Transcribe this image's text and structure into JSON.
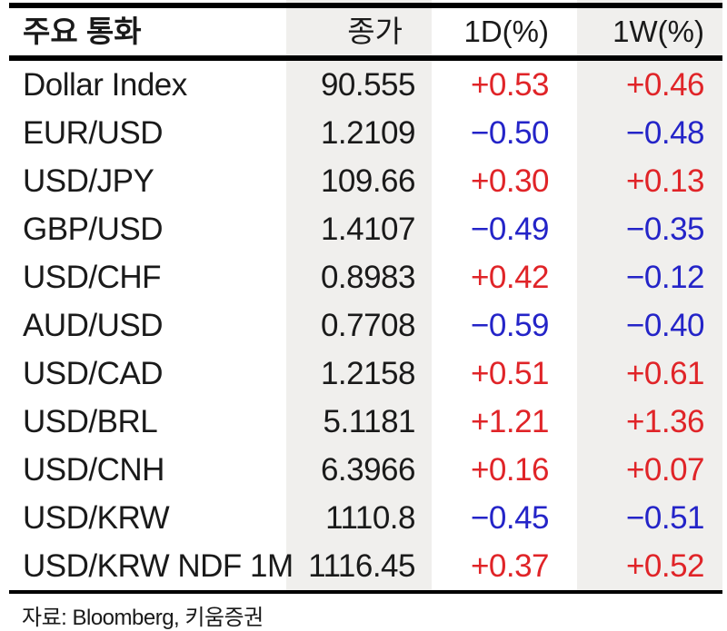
{
  "colors": {
    "positive": "#e02428",
    "negative": "#2424c8",
    "band": "#f0efed",
    "line": "#000000",
    "text": "#1a1a1a"
  },
  "table": {
    "headers": [
      "주요 통화",
      "종가",
      "1D(%)",
      "1W(%)"
    ],
    "rows": [
      {
        "name": "Dollar Index",
        "close": "90.555",
        "d1": "+0.53",
        "w1": "+0.46"
      },
      {
        "name": "EUR/USD",
        "close": "1.2109",
        "d1": "−0.50",
        "w1": "−0.48"
      },
      {
        "name": "USD/JPY",
        "close": "109.66",
        "d1": "+0.30",
        "w1": "+0.13"
      },
      {
        "name": "GBP/USD",
        "close": "1.4107",
        "d1": "−0.49",
        "w1": "−0.35"
      },
      {
        "name": "USD/CHF",
        "close": "0.8983",
        "d1": "+0.42",
        "w1": "−0.12"
      },
      {
        "name": "AUD/USD",
        "close": "0.7708",
        "d1": "−0.59",
        "w1": "−0.40"
      },
      {
        "name": "USD/CAD",
        "close": "1.2158",
        "d1": "+0.51",
        "w1": "+0.61"
      },
      {
        "name": "USD/BRL",
        "close": "5.1181",
        "d1": "+1.21",
        "w1": "+1.36"
      },
      {
        "name": "USD/CNH",
        "close": "6.3966",
        "d1": "+0.16",
        "w1": "+0.07"
      },
      {
        "name": "USD/KRW",
        "close": "1110.8",
        "d1": "−0.45",
        "w1": "−0.51"
      },
      {
        "name": "USD/KRW NDF 1M",
        "close": "1116.45",
        "d1": "+0.37",
        "w1": "+0.52"
      }
    ]
  },
  "footer": {
    "source": "자료: Bloomberg,  키움증권"
  },
  "chart_data": {
    "type": "table",
    "title": "주요 통화",
    "columns": [
      "주요 통화",
      "종가",
      "1D(%)",
      "1W(%)"
    ],
    "rows": [
      [
        "Dollar Index",
        90.555,
        0.53,
        0.46
      ],
      [
        "EUR/USD",
        1.2109,
        -0.5,
        -0.48
      ],
      [
        "USD/JPY",
        109.66,
        0.3,
        0.13
      ],
      [
        "GBP/USD",
        1.4107,
        -0.49,
        -0.35
      ],
      [
        "USD/CHF",
        0.8983,
        0.42,
        -0.12
      ],
      [
        "AUD/USD",
        0.7708,
        -0.59,
        -0.4
      ],
      [
        "USD/CAD",
        1.2158,
        0.51,
        0.61
      ],
      [
        "USD/BRL",
        5.1181,
        1.21,
        1.36
      ],
      [
        "USD/CNH",
        6.3966,
        0.16,
        0.07
      ],
      [
        "USD/KRW",
        1110.8,
        -0.45,
        -0.51
      ],
      [
        "USD/KRW NDF 1M",
        1116.45,
        0.37,
        0.52
      ]
    ],
    "notes": "positive values shown in red, negative in blue; 종가 and 1W(%) columns shaded light gray",
    "source": "자료: Bloomberg, 키움증권"
  }
}
